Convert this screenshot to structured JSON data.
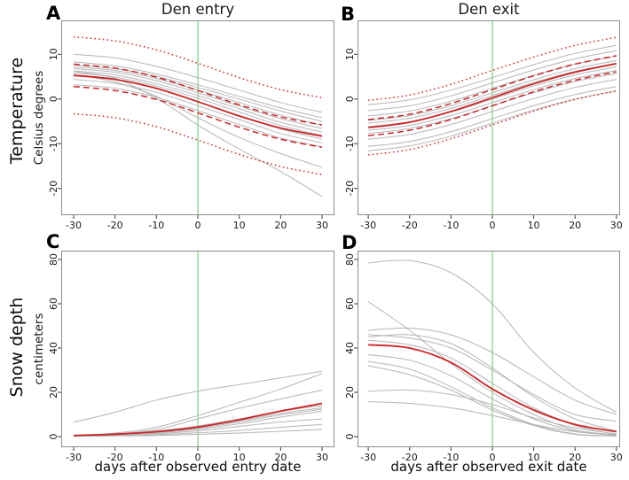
{
  "figure": {
    "row_labels": [
      "Temperature",
      "Snow depth"
    ],
    "colors": {
      "mean_line": "#cc2525",
      "individual_line": "#b5b5b5",
      "event_day_line": "#8fd88f",
      "frame": "#8c8c8c",
      "tick": "#3a3a3a",
      "text": "#1a1a1a"
    }
  },
  "chart_data": [
    {
      "id": "A",
      "panel_label": "A",
      "title": "Den entry",
      "ylabel": "Celsius degrees",
      "xlabel": "",
      "type": "line",
      "x": [
        -30,
        -20,
        -10,
        0,
        10,
        20,
        30
      ],
      "xlim": [
        -33,
        33
      ],
      "ylim": [
        -26,
        17.6
      ],
      "xticks": [
        -30,
        -20,
        -10,
        0,
        10,
        20,
        30
      ],
      "yticks": [
        10,
        0,
        -10,
        -20
      ],
      "vline_x": 0,
      "series": [
        {
          "name": "gray_line_1",
          "style": "gray",
          "values": [
            10,
            9.2,
            7.3,
            4.8,
            2,
            -0.8,
            -3
          ]
        },
        {
          "name": "gray_line_2",
          "style": "gray",
          "values": [
            8.3,
            7.4,
            5.6,
            3.2,
            0.6,
            -2,
            -4.2
          ]
        },
        {
          "name": "gray_line_3",
          "style": "gray",
          "values": [
            7.6,
            6.8,
            5.1,
            2.6,
            0,
            -2.7,
            -5
          ]
        },
        {
          "name": "gray_line_4",
          "style": "gray",
          "values": [
            7.2,
            6.4,
            4.6,
            2,
            -0.8,
            -3.6,
            -5.8
          ]
        },
        {
          "name": "gray_line_5",
          "style": "gray",
          "values": [
            6.8,
            6,
            4.1,
            1.4,
            -1.6,
            -4.4,
            -6.6
          ]
        },
        {
          "name": "gray_line_6",
          "style": "gray",
          "values": [
            6.3,
            5.4,
            3.4,
            0.8,
            -2.2,
            -5.2,
            -7.4
          ]
        },
        {
          "name": "gray_line_7",
          "style": "gray",
          "values": [
            5.8,
            4.9,
            2.9,
            0.2,
            -2.9,
            -5.9,
            -8.2
          ]
        },
        {
          "name": "gray_line_8",
          "style": "gray",
          "values": [
            5.2,
            4.3,
            2.3,
            -0.6,
            -3.7,
            -6.7,
            -9
          ]
        },
        {
          "name": "gray_line_9",
          "style": "gray",
          "values": [
            4.4,
            3.5,
            1.5,
            -1.5,
            -4.6,
            -7.7,
            -9.8
          ]
        },
        {
          "name": "gray_line_10",
          "style": "gray",
          "values": [
            3.2,
            2.4,
            0.4,
            -2.6,
            -5.7,
            -8.7,
            -10.7
          ]
        },
        {
          "name": "gray_line_11",
          "style": "gray",
          "values": [
            5.5,
            3.8,
            0.6,
            -4.2,
            -8.6,
            -12.2,
            -15.3
          ]
        },
        {
          "name": "gray_line_12",
          "style": "gray",
          "values": [
            6.2,
            4.6,
            0.2,
            -5.8,
            -11.2,
            -16.2,
            -21.8
          ]
        },
        {
          "name": "red_dotted_upper",
          "style": "red-dotted",
          "values": [
            13.9,
            13,
            11,
            8,
            4.8,
            2.1,
            0.3
          ]
        },
        {
          "name": "red_dashed_upper",
          "style": "red-dashed",
          "values": [
            7.8,
            6.9,
            4.9,
            1.9,
            -1.3,
            -4,
            -5.8
          ]
        },
        {
          "name": "red_solid_mean",
          "style": "red-solid",
          "values": [
            5.3,
            4.4,
            2.4,
            -0.6,
            -3.8,
            -6.5,
            -8.3
          ]
        },
        {
          "name": "red_dashed_lower",
          "style": "red-dashed",
          "values": [
            2.8,
            1.9,
            -0.1,
            -3.1,
            -6.3,
            -9,
            -10.8
          ]
        },
        {
          "name": "red_dotted_lower",
          "style": "red-dotted",
          "values": [
            -3.3,
            -4.2,
            -6.2,
            -9.2,
            -12.4,
            -15.1,
            -16.9
          ]
        }
      ]
    },
    {
      "id": "B",
      "panel_label": "B",
      "title": "Den exit",
      "ylabel": "",
      "xlabel": "",
      "type": "line",
      "x": [
        -30,
        -20,
        -10,
        0,
        10,
        20,
        30
      ],
      "xlim": [
        -32.6,
        30.9
      ],
      "ylim": [
        -26,
        17.6
      ],
      "xticks": [
        -30,
        -20,
        -10,
        0,
        10,
        20,
        30
      ],
      "yticks": [
        10,
        0,
        -10,
        -20
      ],
      "vline_x": 0,
      "series": [
        {
          "name": "gray_line_1",
          "style": "gray",
          "values": [
            -1.3,
            -0.2,
            2,
            4.8,
            7.7,
            10.2,
            12
          ]
        },
        {
          "name": "gray_line_2",
          "style": "gray",
          "values": [
            -2.6,
            -1.5,
            0.7,
            3.6,
            6.5,
            9,
            10.8
          ]
        },
        {
          "name": "gray_line_3",
          "style": "gray",
          "values": [
            -3.8,
            -2.7,
            -0.5,
            2.4,
            5.3,
            7.8,
            9.6
          ]
        },
        {
          "name": "gray_line_4",
          "style": "gray",
          "values": [
            -4.8,
            -3.7,
            -1.5,
            1.4,
            4.3,
            6.8,
            8.6
          ]
        },
        {
          "name": "gray_line_5",
          "style": "gray",
          "values": [
            -5.4,
            -4.3,
            -2.1,
            0.8,
            3.7,
            6.2,
            8
          ]
        },
        {
          "name": "gray_line_6",
          "style": "gray",
          "values": [
            -6.2,
            -5.1,
            -2.9,
            0,
            2.9,
            5.4,
            7.2
          ]
        },
        {
          "name": "gray_line_7",
          "style": "gray",
          "values": [
            -7,
            -5.9,
            -3.7,
            -0.8,
            2.1,
            4.6,
            6.4
          ]
        },
        {
          "name": "gray_line_8",
          "style": "gray",
          "values": [
            -7.7,
            -6.6,
            -4.4,
            -1.5,
            1.4,
            3.9,
            5.7
          ]
        },
        {
          "name": "gray_line_9",
          "style": "gray",
          "values": [
            -9,
            -7.9,
            -5.7,
            -2.8,
            0.1,
            2.6,
            4.4
          ]
        },
        {
          "name": "gray_line_10",
          "style": "gray",
          "values": [
            -10.6,
            -9.5,
            -7.3,
            -4.4,
            -1.5,
            1,
            2.8
          ]
        },
        {
          "name": "gray_line_11",
          "style": "gray",
          "values": [
            -11.6,
            -10.5,
            -8.3,
            -5.4,
            -2.5,
            0,
            1.8
          ]
        },
        {
          "name": "red_dotted_upper",
          "style": "red-dotted",
          "values": [
            -0.3,
            0.9,
            3.3,
            6.4,
            9.4,
            12,
            13.8
          ]
        },
        {
          "name": "red_dashed_upper",
          "style": "red-dashed",
          "values": [
            -4.6,
            -3.4,
            -1,
            2.1,
            5.2,
            7.8,
            9.7
          ]
        },
        {
          "name": "red_solid_mean",
          "style": "red-solid",
          "values": [
            -6.4,
            -5.2,
            -2.8,
            0.3,
            3.4,
            6,
            7.9
          ]
        },
        {
          "name": "red_dashed_lower",
          "style": "red-dashed",
          "values": [
            -8.2,
            -7,
            -4.6,
            -1.5,
            1.6,
            4.2,
            6.1
          ]
        },
        {
          "name": "red_dotted_lower",
          "style": "red-dotted",
          "values": [
            -12.5,
            -11.3,
            -8.9,
            -5.8,
            -2.7,
            -0.1,
            1.8
          ]
        }
      ]
    },
    {
      "id": "C",
      "panel_label": "C",
      "title": "",
      "ylabel": "centimeters",
      "xlabel": "days after observed entry date",
      "type": "line",
      "x": [
        -30,
        -20,
        -10,
        0,
        10,
        20,
        30
      ],
      "xlim": [
        -33,
        33
      ],
      "ylim": [
        -4.8,
        84
      ],
      "xticks": [
        -30,
        -20,
        -10,
        0,
        10,
        20,
        30
      ],
      "yticks": [
        0,
        20,
        40,
        60,
        80
      ],
      "vline_x": 0,
      "series": [
        {
          "name": "gray_line_1",
          "style": "gray",
          "values": [
            6.5,
            11,
            16.5,
            20.5,
            23.5,
            26.5,
            29.5
          ]
        },
        {
          "name": "gray_line_2",
          "style": "gray",
          "values": [
            0.6,
            1.6,
            4.2,
            9.5,
            15.5,
            21.5,
            28.5
          ]
        },
        {
          "name": "gray_line_3",
          "style": "gray",
          "values": [
            0.5,
            1.3,
            3.2,
            8,
            12.8,
            17,
            21
          ]
        },
        {
          "name": "gray_line_4",
          "style": "gray",
          "values": [
            0.5,
            1.2,
            2.6,
            4.8,
            8,
            11.5,
            14
          ]
        },
        {
          "name": "gray_line_5",
          "style": "gray",
          "values": [
            0.4,
            1,
            2.2,
            4.2,
            7.2,
            10.5,
            13
          ]
        },
        {
          "name": "gray_line_6",
          "style": "gray",
          "values": [
            0.4,
            0.9,
            2,
            3.8,
            6.6,
            9.8,
            12.4
          ]
        },
        {
          "name": "gray_line_7",
          "style": "gray",
          "values": [
            0.3,
            0.8,
            1.7,
            3.3,
            5.8,
            8.8,
            11.5
          ]
        },
        {
          "name": "gray_line_8",
          "style": "gray",
          "values": [
            0.2,
            0.6,
            1.3,
            2.6,
            4.6,
            6.6,
            8
          ]
        },
        {
          "name": "gray_line_9",
          "style": "gray",
          "values": [
            0.2,
            0.4,
            0.9,
            1.7,
            2.8,
            4.2,
            5.5
          ]
        },
        {
          "name": "gray_line_10",
          "style": "gray",
          "values": [
            0.1,
            0.3,
            0.5,
            1,
            1.6,
            2.4,
            3.3
          ]
        },
        {
          "name": "red_solid_mean",
          "style": "red-solid",
          "values": [
            0.5,
            1.1,
            2.2,
            4.3,
            7.6,
            11.5,
            15
          ]
        }
      ]
    },
    {
      "id": "D",
      "panel_label": "D",
      "title": "",
      "ylabel": "",
      "xlabel": "days after observed exit date",
      "type": "line",
      "x": [
        -30,
        -20,
        -10,
        0,
        10,
        20,
        30
      ],
      "xlim": [
        -32.6,
        30.9
      ],
      "ylim": [
        -4.8,
        84
      ],
      "xticks": [
        -30,
        -20,
        -10,
        0,
        10,
        20,
        30
      ],
      "yticks": [
        0,
        20,
        40,
        60,
        80
      ],
      "vline_x": 0,
      "series": [
        {
          "name": "gray_line_1",
          "style": "gray",
          "values": [
            78.5,
            79.5,
            74,
            60,
            38,
            22,
            11
          ]
        },
        {
          "name": "gray_line_2",
          "style": "gray",
          "values": [
            61,
            48,
            33,
            20,
            10,
            3,
            0.8
          ]
        },
        {
          "name": "gray_line_3",
          "style": "gray",
          "values": [
            48,
            49,
            46,
            38,
            27,
            16.5,
            10
          ]
        },
        {
          "name": "gray_line_4",
          "style": "gray",
          "values": [
            45,
            46,
            42,
            31,
            18,
            8,
            2.5
          ]
        },
        {
          "name": "gray_line_5",
          "style": "gray",
          "values": [
            43.5,
            41.5,
            35.5,
            24,
            13,
            5,
            1
          ]
        },
        {
          "name": "gray_line_6",
          "style": "gray",
          "values": [
            46,
            44.5,
            40,
            30,
            19,
            10,
            7
          ]
        },
        {
          "name": "gray_line_7",
          "style": "gray",
          "values": [
            37,
            34.5,
            27.5,
            17,
            8,
            2.5,
            0.5
          ]
        },
        {
          "name": "gray_line_8",
          "style": "gray",
          "values": [
            34,
            30.5,
            22.5,
            13,
            5.5,
            1.2,
            0.3
          ]
        },
        {
          "name": "gray_line_9",
          "style": "gray",
          "values": [
            32,
            28,
            21,
            12,
            5,
            1,
            0.3
          ]
        },
        {
          "name": "gray_line_10",
          "style": "gray",
          "values": [
            20.5,
            21,
            19,
            14.5,
            8.5,
            4,
            1.2
          ]
        },
        {
          "name": "gray_line_11",
          "style": "gray",
          "values": [
            15.8,
            15,
            13,
            9.5,
            5.5,
            2.2,
            0.8
          ]
        },
        {
          "name": "red_solid_mean",
          "style": "red-solid",
          "values": [
            41.5,
            40,
            33.5,
            21.5,
            12,
            5.5,
            2.2
          ]
        }
      ]
    }
  ]
}
